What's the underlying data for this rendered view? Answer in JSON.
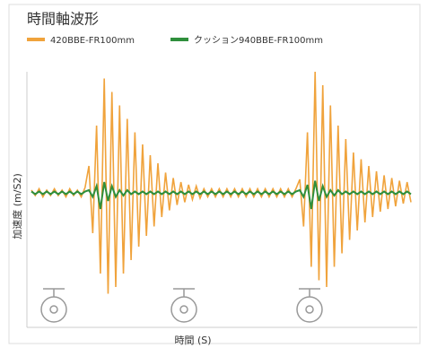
{
  "chart_data": {
    "type": "line",
    "title": "時間軸波形",
    "xlabel": "時間 (S)",
    "ylabel": "加速度 (m/S2)",
    "x": [
      0,
      1,
      2,
      3,
      4,
      5,
      6,
      7,
      8,
      9,
      10,
      11,
      12,
      13,
      14,
      15,
      16,
      17,
      18,
      19,
      20,
      21,
      22,
      23,
      24,
      25,
      26,
      27,
      28,
      29,
      30,
      31,
      32,
      33,
      34,
      35,
      36,
      37,
      38,
      39,
      40,
      41,
      42,
      43,
      44,
      45,
      46,
      47,
      48,
      49,
      50,
      51,
      52,
      53,
      54,
      55,
      56,
      57,
      58,
      59,
      60,
      61,
      62,
      63,
      64,
      65,
      66,
      67,
      68,
      69,
      70,
      71,
      72,
      73,
      74,
      75,
      76,
      77,
      78,
      79,
      80,
      81,
      82,
      83,
      84,
      85,
      86,
      87,
      88,
      89,
      90,
      91,
      92,
      93,
      94,
      95,
      96,
      97,
      98,
      99
    ],
    "xlim": [
      0,
      99
    ],
    "ylim": [
      -100,
      100
    ],
    "legend": "top-left",
    "series": [
      {
        "name": "420BBE-FR100mm",
        "color": "#f0a33c",
        "values": [
          2,
          -2,
          3,
          -3,
          2,
          -2,
          3,
          -2,
          2,
          -3,
          3,
          -2,
          2,
          -3,
          4,
          20,
          -30,
          50,
          -60,
          85,
          -75,
          75,
          -70,
          65,
          -60,
          55,
          -50,
          45,
          -40,
          36,
          -32,
          28,
          -25,
          22,
          -18,
          15,
          -13,
          11,
          -9,
          8,
          -7,
          6,
          -5,
          5,
          -4,
          3,
          -3,
          3,
          -3,
          3,
          -3,
          3,
          -3,
          3,
          -3,
          3,
          -3,
          3,
          -3,
          3,
          -3,
          3,
          -3,
          3,
          -3,
          3,
          -3,
          3,
          -3,
          3,
          10,
          -25,
          45,
          -55,
          90,
          -65,
          80,
          -70,
          65,
          -55,
          50,
          -45,
          40,
          -35,
          30,
          -28,
          25,
          -22,
          20,
          -18,
          16,
          -14,
          13,
          -12,
          11,
          -10,
          9,
          -8,
          8,
          -7
        ]
      },
      {
        "name": "クッション940BBE-FR100mm",
        "color": "#2f8f3c",
        "values": [
          1,
          -1,
          1,
          -1,
          1,
          -1,
          1,
          -1,
          1,
          -1,
          1,
          -1,
          1,
          -1,
          1,
          2,
          -3,
          5,
          -12,
          8,
          -6,
          5,
          -3,
          2,
          -2,
          2,
          -1,
          1,
          -1,
          1,
          -1,
          1,
          -1,
          1,
          -1,
          1,
          -1,
          1,
          -1,
          1,
          -1,
          1,
          -1,
          1,
          -1,
          1,
          -1,
          1,
          -1,
          1,
          -1,
          1,
          -1,
          1,
          -1,
          1,
          -1,
          1,
          -1,
          1,
          -1,
          1,
          -1,
          1,
          -1,
          1,
          -1,
          1,
          -1,
          1,
          2,
          -3,
          6,
          -12,
          9,
          -6,
          5,
          -3,
          2,
          -2,
          2,
          -1,
          1,
          -1,
          1,
          -1,
          1,
          -1,
          1,
          -1,
          1,
          -1,
          1,
          -1,
          1,
          -1,
          1,
          -1,
          1,
          -1
        ]
      }
    ]
  }
}
